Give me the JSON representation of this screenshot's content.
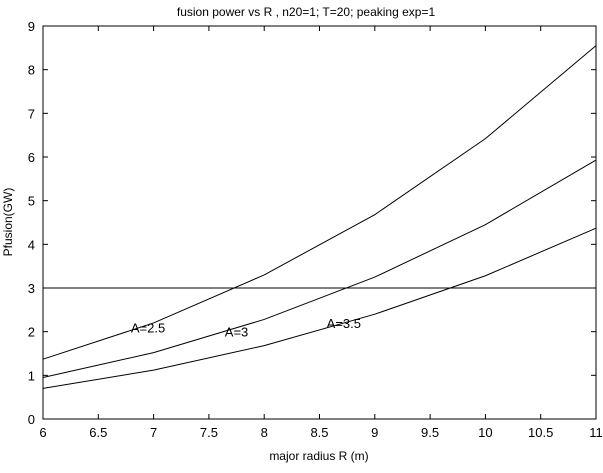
{
  "chart_data": {
    "type": "line",
    "title": "fusion power vs R , n20=1; T=20; peaking exp=1",
    "xlabel": "major radius R (m)",
    "ylabel": "Pfusion(GW)",
    "xlim": [
      6,
      11
    ],
    "ylim": [
      0,
      9
    ],
    "xticks": [
      "6",
      "6.5",
      "7",
      "7.5",
      "8",
      "8.5",
      "9",
      "9.5",
      "10",
      "10.5",
      "11"
    ],
    "yticks": [
      "0",
      "1",
      "2",
      "3",
      "4",
      "5",
      "6",
      "7",
      "8",
      "9"
    ],
    "grid": false,
    "colors": {
      "line": "#000000",
      "axes": "#000000",
      "background": "#ffffff"
    },
    "x": [
      6,
      7,
      8,
      9,
      10,
      11
    ],
    "series": [
      {
        "name": "A=2.5",
        "values": [
          1.37,
          2.2,
          3.3,
          4.68,
          6.42,
          8.55
        ]
      },
      {
        "name": "A=3",
        "values": [
          0.95,
          1.52,
          2.28,
          3.25,
          4.45,
          5.93
        ]
      },
      {
        "name": "A=3.5",
        "values": [
          0.7,
          1.12,
          1.68,
          2.4,
          3.28,
          4.37
        ]
      },
      {
        "name": "",
        "values": [
          3,
          3,
          3,
          3,
          3,
          3
        ]
      }
    ],
    "annotations": [
      {
        "text": "A=2.5",
        "x": 6.95,
        "y": 2.1
      },
      {
        "text": "A=3",
        "x": 7.75,
        "y": 2.0
      },
      {
        "text": "A=3.5",
        "x": 8.72,
        "y": 2.2
      }
    ]
  }
}
